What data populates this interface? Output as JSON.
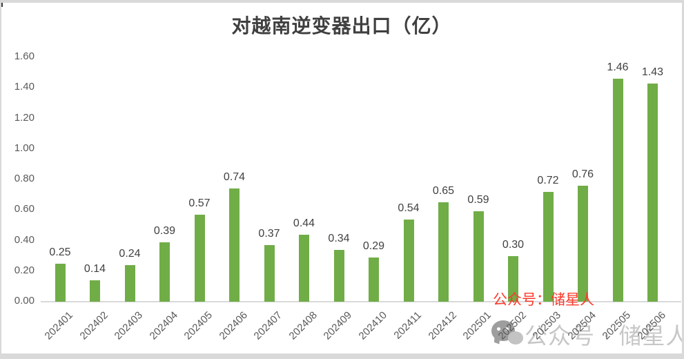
{
  "chart_data": {
    "type": "bar",
    "title": "对越南逆变器出口（亿）",
    "categories": [
      "202401",
      "202402",
      "202403",
      "202404",
      "202405",
      "202406",
      "202407",
      "202408",
      "202409",
      "202410",
      "202411",
      "202412",
      "202501",
      "202502",
      "202503",
      "202504",
      "202505",
      "202506"
    ],
    "values": [
      0.25,
      0.14,
      0.24,
      0.39,
      0.57,
      0.74,
      0.37,
      0.44,
      0.34,
      0.29,
      0.54,
      0.65,
      0.59,
      0.3,
      0.72,
      0.76,
      1.46,
      1.43
    ],
    "value_labels": [
      "0.25",
      "0.14",
      "0.24",
      "0.39",
      "0.57",
      "0.74",
      "0.37",
      "0.44",
      "0.34",
      "0.29",
      "0.54",
      "0.65",
      "0.59",
      "0.30",
      "0.72",
      "0.76",
      "1.46",
      "1.43"
    ],
    "xlabel": "",
    "ylabel": "",
    "ylim": [
      0,
      1.6
    ],
    "yticks": [
      "0.00",
      "0.20",
      "0.40",
      "0.60",
      "0.80",
      "1.00",
      "1.20",
      "1.40",
      "1.60"
    ],
    "grid": false,
    "legend": "none",
    "colors": {
      "bar": "#70AD47",
      "data_label": "#404040",
      "axis_text": "#595959",
      "baseline": "#d9d9d9"
    }
  },
  "watermarks": {
    "red_text": "公众号：储星人",
    "red_color": "#fb3a2b",
    "gray_text": "公众号 · 储星人",
    "gray_color": "#c7c7c7",
    "wechat_icon": "wechat-icon"
  }
}
